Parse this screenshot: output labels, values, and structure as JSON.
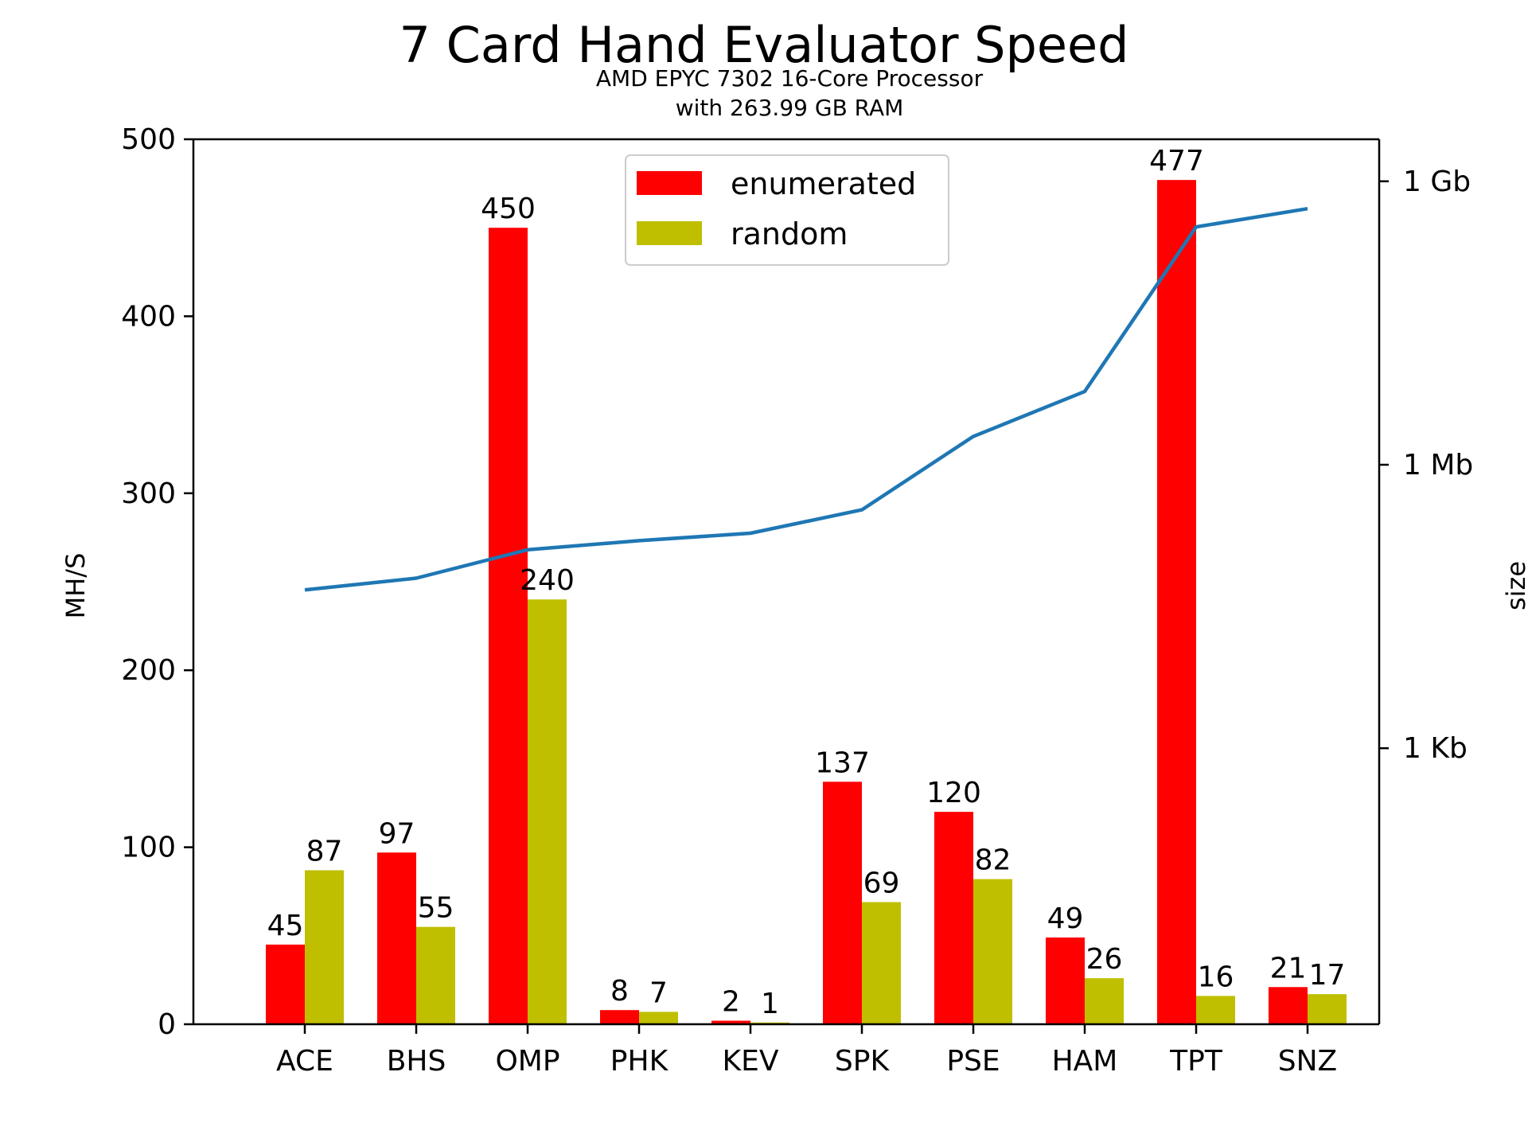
{
  "chart_data": {
    "type": "bar",
    "title": "7 Card Hand Evaluator Speed",
    "subtitle_lines": [
      "AMD EPYC 7302 16-Core Processor",
      "with 263.99 GB RAM"
    ],
    "ylabel": "MH/S",
    "y2label": "size",
    "categories": [
      "ACE",
      "BHS",
      "OMP",
      "PHK",
      "KEV",
      "SPK",
      "PSE",
      "HAM",
      "TPT",
      "SNZ"
    ],
    "ylim": [
      0,
      500
    ],
    "yticks": [
      0,
      100,
      200,
      300,
      400,
      500
    ],
    "series": [
      {
        "name": "enumerated",
        "color": "#ff0000",
        "values": [
          45,
          97,
          450,
          8,
          2,
          137,
          120,
          49,
          477,
          21
        ]
      },
      {
        "name": "random",
        "color": "#bfbf00",
        "values": [
          87,
          55,
          240,
          7,
          1,
          69,
          82,
          26,
          16,
          17
        ]
      }
    ],
    "size_line": {
      "color": "#1f77b4",
      "scale": "log",
      "axis_ticks": [
        {
          "label": "1 Kb",
          "value": 1024
        },
        {
          "label": "1 Mb",
          "value": 1048576
        },
        {
          "label": "1 Gb",
          "value": 1073741824
        }
      ],
      "y2lim": [
        1.2,
        3000000000
      ],
      "values": [
        49152,
        65536,
        131072,
        163840,
        196608,
        348160,
        2097152,
        6291456,
        352321536,
        549453824
      ]
    },
    "legend_position": "top-center",
    "grid": false
  }
}
